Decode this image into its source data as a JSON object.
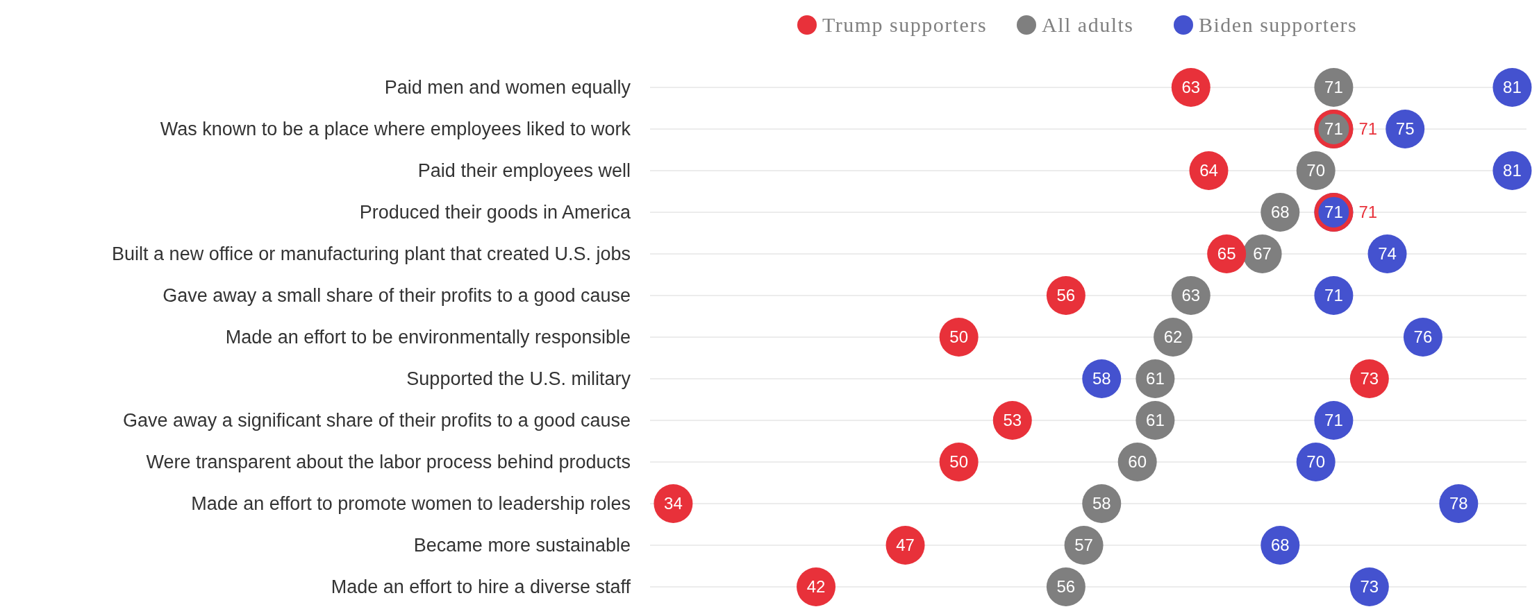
{
  "chart_data": {
    "type": "scatter",
    "orientation": "horizontal",
    "categories": [
      "Paid men and women equally",
      "Was known to be a place where employees liked to work",
      "Paid their employees well",
      "Produced their goods in America",
      "Built a new office or manufacturing plant that created U.S. jobs",
      "Gave away a small share of their profits to a good cause",
      "Made an effort to be environmentally responsible",
      "Supported the U.S. military",
      "Gave away a significant share of their profits to a good cause",
      "Were transparent about the labor process behind products",
      "Made an effort to promote women to leadership roles",
      "Became more sustainable",
      "Made an effort to hire a diverse staff"
    ],
    "series": [
      {
        "name": "Trump supporters",
        "color": "#e8313a",
        "values": [
          63,
          71,
          64,
          71,
          65,
          56,
          50,
          73,
          53,
          50,
          34,
          47,
          42
        ]
      },
      {
        "name": "All adults",
        "color": "#7f7f7f",
        "values": [
          71,
          71,
          70,
          68,
          67,
          63,
          62,
          61,
          61,
          60,
          58,
          57,
          56
        ]
      },
      {
        "name": "Biden supporters",
        "color": "#4452cf",
        "values": [
          81,
          75,
          81,
          71,
          74,
          71,
          76,
          58,
          71,
          70,
          78,
          68,
          73
        ]
      }
    ],
    "data_labels": true,
    "marker": "circle",
    "legend": "top",
    "grid": "y"
  }
}
